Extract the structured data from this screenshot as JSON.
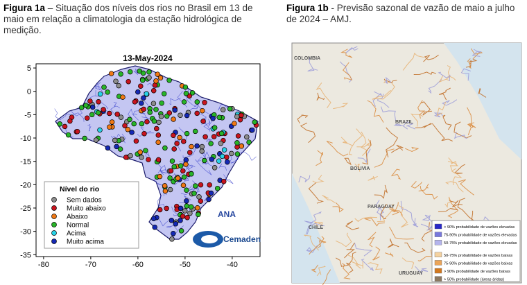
{
  "figure_1a": {
    "label": "Figura 1a",
    "caption": "– Situação dos níveis dos rios no Brasil em 13 de maio em relação a climatologia da estação hidrológica de medição.",
    "map": {
      "title": "13-May-2024",
      "xlim": [
        -81.6,
        -34.1
      ],
      "ylim": [
        -35.4,
        5.9
      ],
      "xticks": [
        -80,
        -70,
        -60,
        -50,
        -40
      ],
      "yticks": [
        5,
        0,
        -5,
        -10,
        -15,
        -20,
        -25,
        -30,
        -35
      ]
    },
    "legend": {
      "title": "Nível do rio",
      "items": [
        {
          "label": "Sem dados",
          "color": "#8c8c8c"
        },
        {
          "label": "Muito abaixo",
          "color": "#c8141e"
        },
        {
          "label": "Abaixo",
          "color": "#f07814"
        },
        {
          "label": "Normal",
          "color": "#28b428"
        },
        {
          "label": "Acima",
          "color": "#28d2e6"
        },
        {
          "label": "Muito acima",
          "color": "#1428b4"
        }
      ]
    },
    "logos": [
      "ANA",
      "Cemaden"
    ]
  },
  "figure_1b": {
    "label": "Figura 1b",
    "caption": "- Previsão sazonal de vazão de maio a julho de 2024 – AMJ.",
    "map_labels": [
      "COLOMBIA",
      "BRAZIL",
      "BOLIVIA",
      "PARAGUAY",
      "CHILE",
      "URUGUAY"
    ],
    "legend": {
      "items": [
        {
          "label": "> 90% probabilidade de vazões elevadas",
          "color": "#2828c8"
        },
        {
          "label": "75-90% probabilidade de vazões elevadas",
          "color": "#7878dc"
        },
        {
          "label": "50-75% probabilidade de vazões elevadas",
          "color": "#b4b4ec"
        },
        {
          "label": "50-75% probabilidade de vazões baixas",
          "color": "#f5d2a0"
        },
        {
          "label": "75-90% probabilidade de vazões baixas",
          "color": "#eba55a"
        },
        {
          "label": "> 90% probabilidade de vazões baixas",
          "color": "#d2781e"
        },
        {
          "label": "> 50% probabilidade (áreas áridas)",
          "color": "#8c7860"
        }
      ]
    }
  }
}
